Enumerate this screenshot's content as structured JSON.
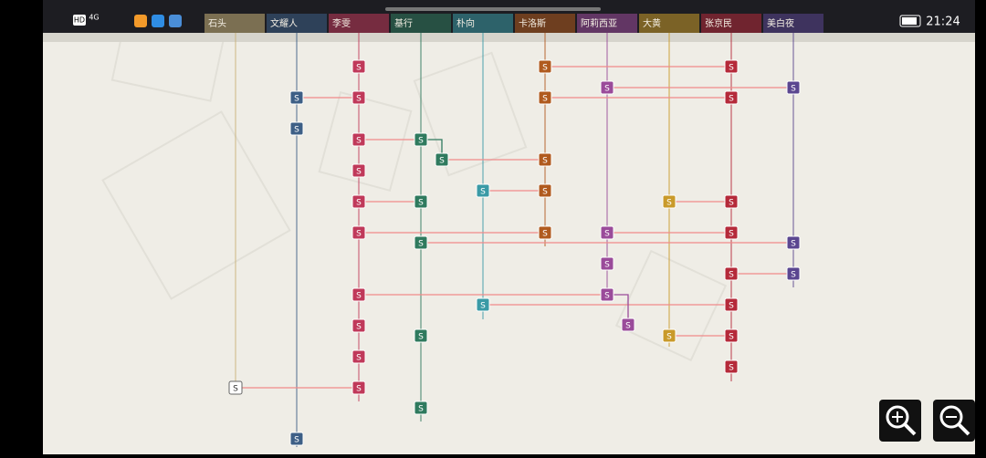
{
  "status_bar": {
    "network": "4G",
    "hd": "HD",
    "time": "21:24"
  },
  "tabs": [
    "石头",
    "文耀人",
    "李雯",
    "基行",
    "朴向",
    "卡洛斯",
    "阿莉西亚",
    "大黄",
    "张京民",
    "美白夜"
  ],
  "nodes": [
    "S",
    "S",
    "S",
    "S",
    "S",
    "S",
    "S",
    "S",
    "S",
    "S",
    "S",
    "S",
    "S",
    "S",
    "S",
    "S",
    "S",
    "S",
    "S",
    "S",
    "S",
    "S",
    "S",
    "S",
    "S",
    "S",
    "S",
    "S",
    "S",
    "S",
    "S",
    "S",
    "S",
    "S",
    "S",
    "S",
    "S",
    "S",
    "S",
    "S",
    "S",
    "S",
    "S",
    "S"
  ]
}
